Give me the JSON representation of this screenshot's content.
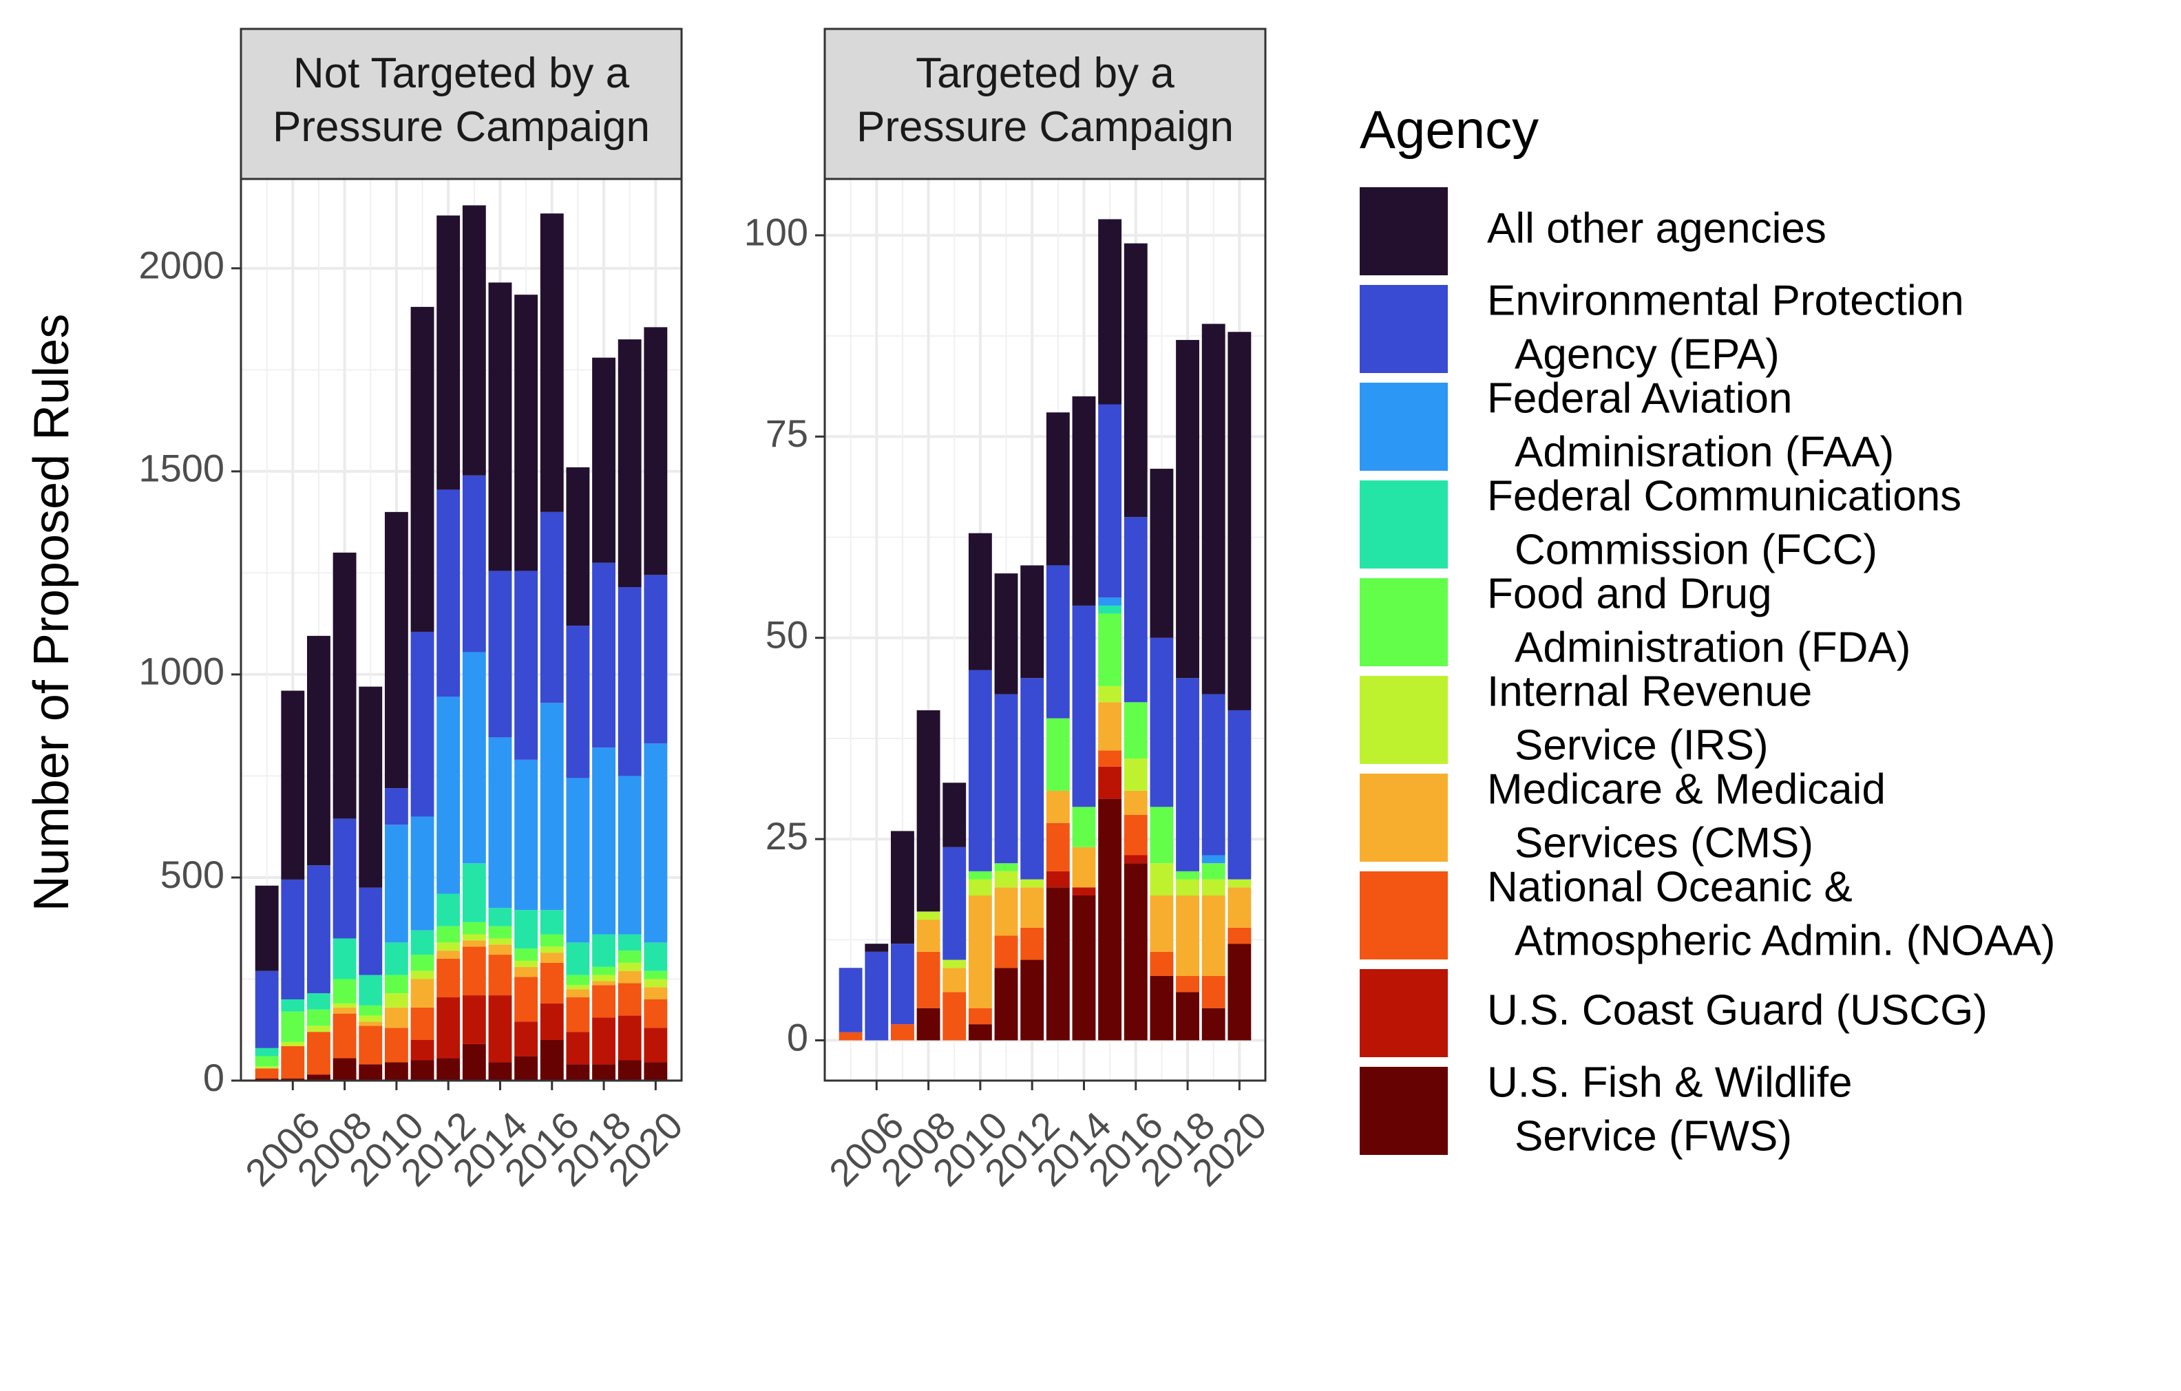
{
  "chart_data": {
    "type": "bar",
    "stacked": true,
    "ylabel": "Number of Proposed Rules",
    "x_tick_labels": [
      "2006",
      "2008",
      "2010",
      "2012",
      "2014",
      "2016",
      "2018",
      "2020"
    ],
    "years": [
      2005,
      2006,
      2007,
      2008,
      2009,
      2010,
      2011,
      2012,
      2013,
      2014,
      2015,
      2016,
      2017,
      2018,
      2019,
      2020
    ],
    "legend": {
      "title": "Agency",
      "placement": "right",
      "items": [
        {
          "key": "other",
          "line1": "All other agencies",
          "line2": "",
          "color": "#23102E"
        },
        {
          "key": "epa",
          "line1": "Environmental Protection",
          "line2": "Agency (EPA)",
          "color": "#394BD2"
        },
        {
          "key": "faa",
          "line1": "Federal Aviation",
          "line2": "Adminisration (FAA)",
          "color": "#2D97F5"
        },
        {
          "key": "fcc",
          "line1": "Federal Communications",
          "line2": "Commission (FCC)",
          "color": "#24E5A5"
        },
        {
          "key": "fda",
          "line1": "Food and Drug",
          "line2": "Administration (FDA)",
          "color": "#63FE4A"
        },
        {
          "key": "irs",
          "line1": "Internal Revenue",
          "line2": "Service (IRS)",
          "color": "#BFF22E"
        },
        {
          "key": "cms",
          "line1": "Medicare & Medicaid",
          "line2": "Services (CMS)",
          "color": "#F7AE2E"
        },
        {
          "key": "noaa",
          "line1": "National Oceanic &",
          "line2": "Atmospheric Admin. (NOAA)",
          "color": "#F35513"
        },
        {
          "key": "uscg",
          "line1": "U.S. Coast Guard (USCG)",
          "line2": "",
          "color": "#BC1404"
        },
        {
          "key": "fws",
          "line1": "U.S. Fish & Wildlife",
          "line2": "Service (FWS)",
          "color": "#660202"
        }
      ]
    },
    "panels": [
      {
        "strip_line1": "Not Targeted by a",
        "strip_line2": "Pressure Campaign",
        "ylim": [
          0,
          2220
        ],
        "y_ticks": [
          0,
          500,
          1000,
          1500,
          2000
        ],
        "series": {
          "fws": [
            5,
            5,
            15,
            55,
            40,
            45,
            50,
            55,
            90,
            45,
            60,
            100,
            40,
            40,
            50,
            45
          ],
          "uscg": [
            0,
            0,
            0,
            0,
            0,
            0,
            50,
            150,
            120,
            165,
            85,
            90,
            80,
            115,
            110,
            85
          ],
          "noaa": [
            25,
            80,
            105,
            110,
            95,
            85,
            80,
            95,
            120,
            100,
            110,
            100,
            85,
            80,
            80,
            70
          ],
          "cms": [
            0,
            0,
            0,
            15,
            10,
            50,
            70,
            20,
            15,
            25,
            25,
            25,
            20,
            10,
            30,
            30
          ],
          "irs": [
            5,
            10,
            15,
            10,
            15,
            35,
            20,
            20,
            15,
            15,
            15,
            15,
            10,
            15,
            20,
            20
          ],
          "fda": [
            25,
            75,
            40,
            60,
            25,
            45,
            40,
            40,
            30,
            30,
            30,
            30,
            25,
            20,
            30,
            20
          ],
          "fcc": [
            20,
            30,
            40,
            100,
            75,
            80,
            60,
            80,
            145,
            45,
            95,
            60,
            80,
            80,
            40,
            70
          ],
          "faa": [
            0,
            0,
            0,
            0,
            0,
            290,
            280,
            485,
            520,
            420,
            370,
            510,
            405,
            460,
            390,
            490
          ],
          "epa": [
            190,
            295,
            315,
            295,
            215,
            90,
            455,
            510,
            435,
            410,
            465,
            470,
            375,
            455,
            465,
            415
          ],
          "other": [
            210,
            465,
            565,
            655,
            495,
            680,
            800,
            675,
            665,
            710,
            680,
            735,
            390,
            505,
            610,
            610
          ]
        }
      },
      {
        "strip_line1": "Targeted by a",
        "strip_line2": "Pressure Campaign",
        "ylim": [
          -5,
          107
        ],
        "y_ticks": [
          0,
          25,
          50,
          75,
          100
        ],
        "series": {
          "fws": [
            0,
            0,
            0,
            4,
            0,
            2,
            9,
            10,
            19,
            18,
            30,
            22,
            8,
            6,
            4,
            12
          ],
          "uscg": [
            0,
            0,
            0,
            0,
            0,
            0,
            0,
            0,
            2,
            1,
            4,
            1,
            0,
            0,
            0,
            0
          ],
          "noaa": [
            1,
            0,
            2,
            7,
            6,
            2,
            4,
            4,
            6,
            0,
            2,
            5,
            3,
            2,
            4,
            2
          ],
          "cms": [
            0,
            0,
            0,
            4,
            3,
            14,
            6,
            5,
            4,
            5,
            6,
            3,
            7,
            10,
            10,
            5
          ],
          "irs": [
            0,
            0,
            0,
            1,
            1,
            2,
            2,
            1,
            0,
            0,
            2,
            4,
            4,
            2,
            2,
            1
          ],
          "fda": [
            0,
            0,
            0,
            0,
            0,
            1,
            1,
            0,
            9,
            5,
            9,
            7,
            7,
            1,
            2,
            0
          ],
          "fcc": [
            0,
            0,
            0,
            0,
            0,
            0,
            0,
            0,
            0,
            0,
            1,
            0,
            0,
            0,
            0,
            0
          ],
          "faa": [
            0,
            0,
            0,
            0,
            0,
            0,
            0,
            0,
            0,
            0,
            1,
            0,
            0,
            0,
            1,
            0
          ],
          "epa": [
            8,
            11,
            10,
            0,
            14,
            25,
            21,
            25,
            19,
            25,
            24,
            23,
            21,
            24,
            20,
            21
          ],
          "other": [
            0,
            1,
            14,
            25,
            8,
            17,
            15,
            14,
            19,
            26,
            23,
            34,
            21,
            42,
            46,
            47
          ]
        }
      }
    ]
  }
}
